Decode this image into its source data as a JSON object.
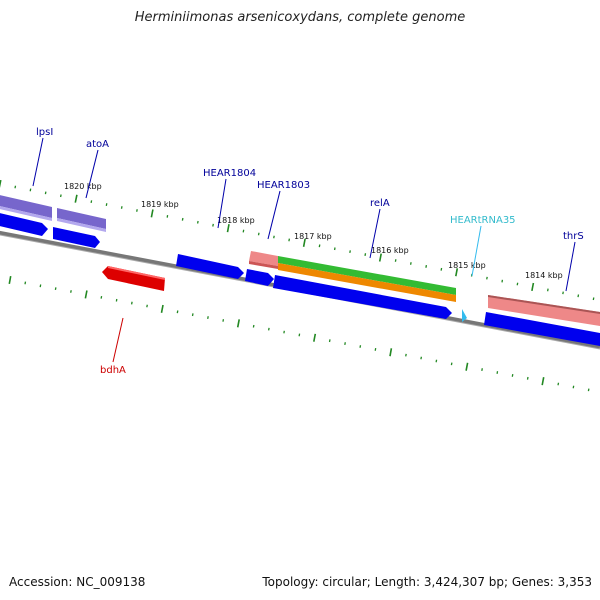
{
  "title": "Herminiimonas arsenicoxydans, complete genome",
  "footer": {
    "accession": "Accession: NC_009138",
    "topology": "Topology: circular; Length: 3,424,307 bp; Genes: 3,353"
  },
  "kbp_labels": [
    "1820 kbp",
    "1819 kbp",
    "1818 kbp",
    "1817 kbp",
    "1816 kbp",
    "1815 kbp",
    "1814 kbp"
  ],
  "gene_labels": {
    "lpsI": "lpsI",
    "atoA": "atoA",
    "hear1804": "HEAR1804",
    "hear1803": "HEAR1803",
    "relA": "relA",
    "trna35": "HEARtRNA35",
    "thrS": "thrS",
    "bdhA": "bdhA"
  },
  "colors": {
    "cds": "#0000ee",
    "trna": "#33bbee",
    "rrna_gene": "#dd0000",
    "cog_purple": "#7766cc",
    "cog_pink": "#ee8888",
    "cog_green": "#33bb33",
    "cog_orange": "#ee8800",
    "backbone": "#777777",
    "ticks": "#228822"
  }
}
